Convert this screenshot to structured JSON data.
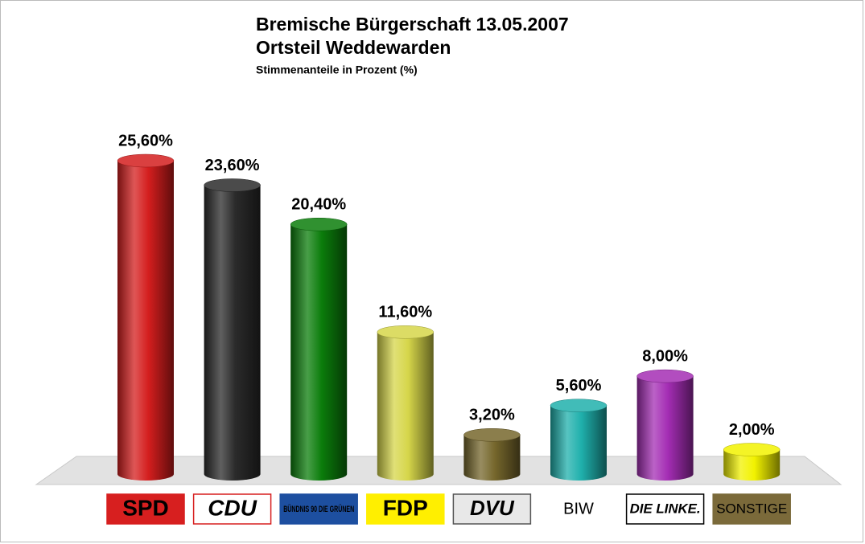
{
  "chart_data": {
    "type": "bar",
    "title": "Bremische Bürgerschaft 13.05.2007",
    "subtitle": "Ortsteil Weddewarden",
    "y_label": "Stimmenanteile in Prozent (%)",
    "categories": [
      "SPD",
      "CDU",
      "BÜNDNIS 90 DIE GRÜNEN",
      "FDP",
      "DVU",
      "BIW",
      "DIE LINKE.",
      "SONSTIGE"
    ],
    "values": [
      25.6,
      23.6,
      20.4,
      11.6,
      3.2,
      5.6,
      8.0,
      2.0
    ],
    "value_labels": [
      "25,60%",
      "23,60%",
      "20,40%",
      "11,60%",
      "3,20%",
      "5,60%",
      "8,00%",
      "2,00%"
    ],
    "colors": [
      "#d41e1e",
      "#2b2b2b",
      "#0b7d0b",
      "#d6d64a",
      "#76672c",
      "#1fb0ac",
      "#a42db4",
      "#f2f200"
    ]
  }
}
